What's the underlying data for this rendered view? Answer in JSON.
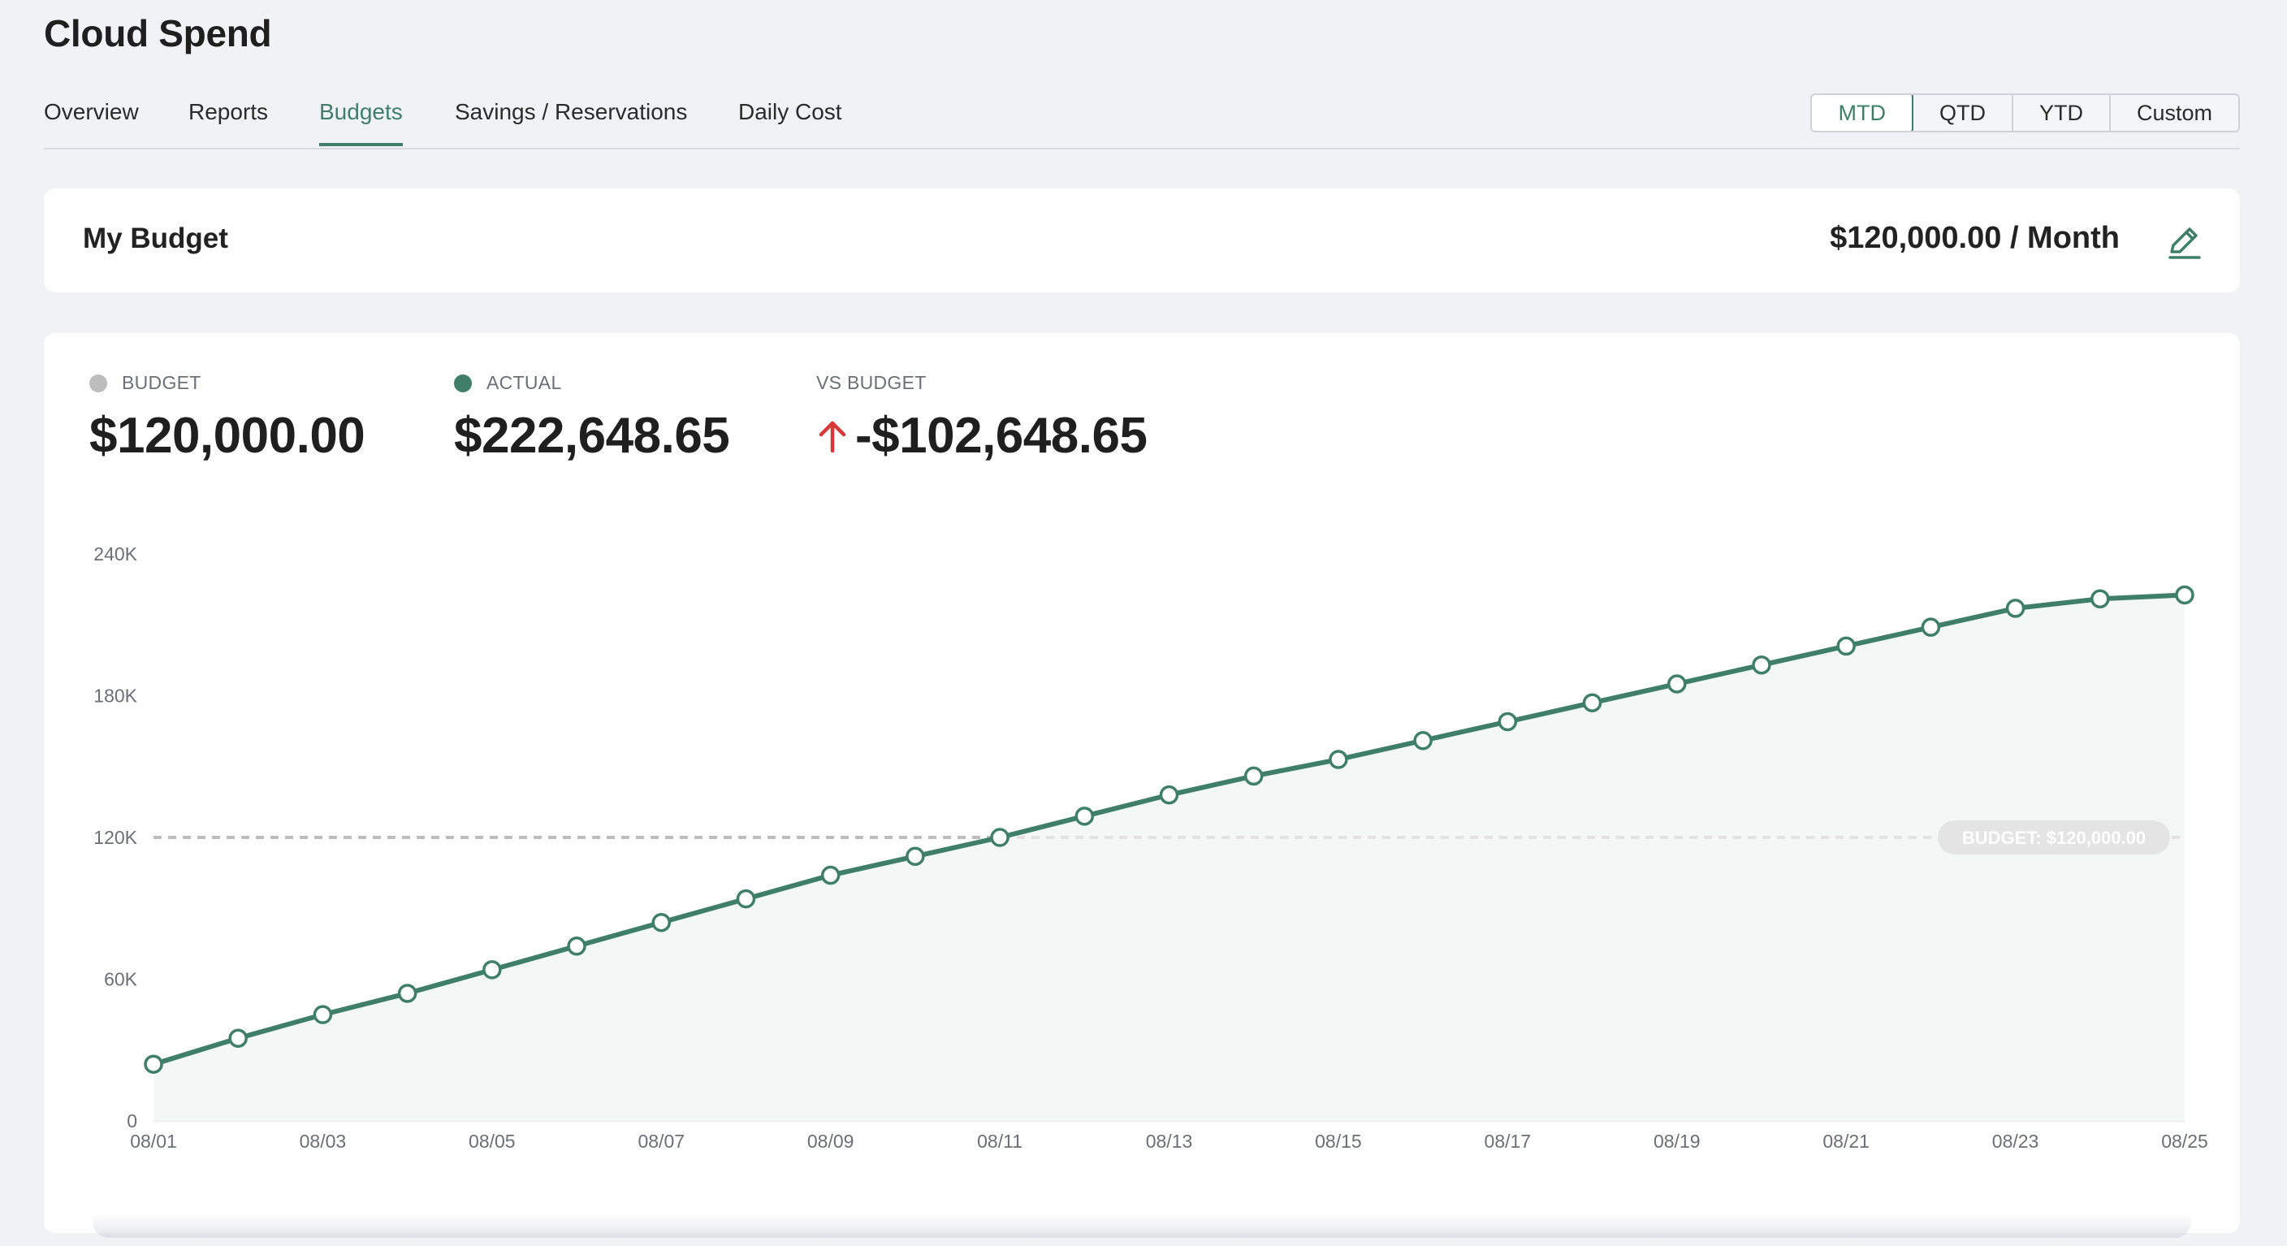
{
  "app": {
    "title": "Cloud Spend"
  },
  "tabs": [
    {
      "label": "Overview"
    },
    {
      "label": "Reports"
    },
    {
      "label": "Budgets",
      "active": true
    },
    {
      "label": "Savings / Reservations"
    },
    {
      "label": "Daily Cost"
    }
  ],
  "period_options": [
    {
      "label": "MTD",
      "active": true
    },
    {
      "label": "QTD"
    },
    {
      "label": "YTD"
    },
    {
      "label": "Custom"
    }
  ],
  "budget_card": {
    "label": "My Budget",
    "amount": "$120,000.00 / Month",
    "edit_icon": "pencil-icon"
  },
  "kpis": {
    "budget": {
      "label": "BUDGET",
      "value": "$120,000.00",
      "color": "#bdbdbd"
    },
    "actual": {
      "label": "ACTUAL",
      "value": "$222,648.65",
      "color": "#3f7f6a"
    },
    "vs_budget": {
      "label": "VS BUDGET",
      "value": "-$102,648.65",
      "icon": "arrow-up-icon",
      "icon_color": "#d93838"
    }
  },
  "colors": {
    "accent": "#3f7f6a",
    "budget_line": "#c4c4c4",
    "area_fill": "#f3f7f6",
    "over_budget": "#d93838"
  },
  "chart_data": {
    "type": "line",
    "title": "",
    "xlabel": "",
    "ylabel": "",
    "ylim": [
      0,
      240000
    ],
    "yticks": [
      0,
      60000,
      120000,
      180000,
      240000
    ],
    "ytick_labels": [
      "0",
      "60K",
      "120K",
      "180K",
      "240K"
    ],
    "xtick_labels": [
      "08/01",
      "08/03",
      "08/05",
      "08/07",
      "08/09",
      "08/11",
      "08/13",
      "08/15",
      "08/17",
      "08/19",
      "08/21",
      "08/23",
      "08/25"
    ],
    "x": [
      "08/01",
      "08/02",
      "08/03",
      "08/04",
      "08/05",
      "08/06",
      "08/07",
      "08/08",
      "08/09",
      "08/10",
      "08/11",
      "08/12",
      "08/13",
      "08/14",
      "08/15",
      "08/16",
      "08/17",
      "08/18",
      "08/19",
      "08/20",
      "08/21",
      "08/22",
      "08/23",
      "08/24",
      "08/25"
    ],
    "series": [
      {
        "name": "ACTUAL",
        "values": [
          24000,
          35000,
          45000,
          54000,
          64000,
          74000,
          84000,
          94000,
          104000,
          112000,
          120000,
          129000,
          138000,
          146000,
          153000,
          161000,
          169000,
          177000,
          185000,
          193000,
          201000,
          209000,
          217000,
          221000,
          222648.65
        ]
      }
    ],
    "reference_line": {
      "value": 120000,
      "label": "BUDGET: $120,000.00"
    },
    "grid": false,
    "area_fill": true
  }
}
